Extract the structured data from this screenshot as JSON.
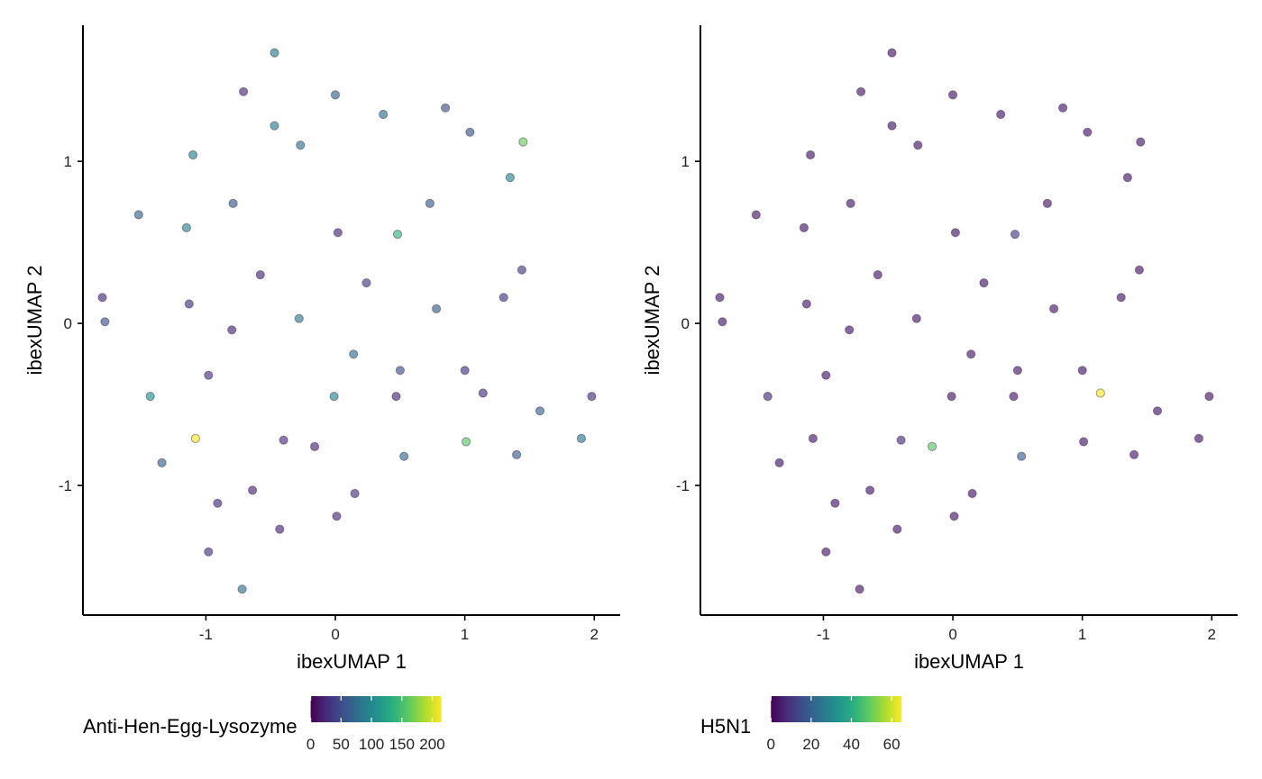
{
  "chart_data": [
    {
      "type": "scatter",
      "xlabel": "ibexUMAP 1",
      "ylabel": "ibexUMAP 2",
      "xlim": [
        -1.95,
        2.2
      ],
      "ylim": [
        -1.8,
        1.84
      ],
      "xticks": [
        -1,
        0,
        1,
        2
      ],
      "yticks": [
        -1,
        0,
        1
      ],
      "grid": false,
      "legend": {
        "title": "Anti-Hen-Egg-Lysozyme",
        "placement": "bottom",
        "colorscale": "viridis",
        "range": [
          0,
          215
        ],
        "ticks": [
          0,
          50,
          100,
          150,
          200
        ],
        "tick_labels": [
          "0",
          "50",
          "100",
          "150",
          "200"
        ]
      },
      "points": [
        {
          "x": -0.47,
          "y": 1.67,
          "v": 90
        },
        {
          "x": -0.71,
          "y": 1.43,
          "v": 25
        },
        {
          "x": 0.0,
          "y": 1.41,
          "v": 70
        },
        {
          "x": 0.37,
          "y": 1.29,
          "v": 80
        },
        {
          "x": 0.85,
          "y": 1.33,
          "v": 55
        },
        {
          "x": -0.47,
          "y": 1.22,
          "v": 95
        },
        {
          "x": -0.27,
          "y": 1.1,
          "v": 80
        },
        {
          "x": 1.04,
          "y": 1.18,
          "v": 60
        },
        {
          "x": 1.45,
          "y": 1.12,
          "v": 165
        },
        {
          "x": -1.1,
          "y": 1.04,
          "v": 95
        },
        {
          "x": 1.35,
          "y": 0.9,
          "v": 100
        },
        {
          "x": -0.79,
          "y": 0.74,
          "v": 60
        },
        {
          "x": 0.73,
          "y": 0.74,
          "v": 65
        },
        {
          "x": -1.52,
          "y": 0.67,
          "v": 70
        },
        {
          "x": -1.15,
          "y": 0.59,
          "v": 100
        },
        {
          "x": 0.02,
          "y": 0.56,
          "v": 25
        },
        {
          "x": 0.48,
          "y": 0.55,
          "v": 140
        },
        {
          "x": -0.58,
          "y": 0.3,
          "v": 25
        },
        {
          "x": 1.44,
          "y": 0.33,
          "v": 40
        },
        {
          "x": 0.24,
          "y": 0.25,
          "v": 40
        },
        {
          "x": -1.8,
          "y": 0.16,
          "v": 25
        },
        {
          "x": 1.3,
          "y": 0.16,
          "v": 30
        },
        {
          "x": -1.13,
          "y": 0.12,
          "v": 30
        },
        {
          "x": 0.78,
          "y": 0.09,
          "v": 65
        },
        {
          "x": -0.28,
          "y": 0.03,
          "v": 90
        },
        {
          "x": -1.78,
          "y": 0.01,
          "v": 55
        },
        {
          "x": -0.8,
          "y": -0.04,
          "v": 25
        },
        {
          "x": 0.14,
          "y": -0.19,
          "v": 80
        },
        {
          "x": 0.5,
          "y": -0.29,
          "v": 55
        },
        {
          "x": 1.0,
          "y": -0.29,
          "v": 30
        },
        {
          "x": -0.98,
          "y": -0.32,
          "v": 30
        },
        {
          "x": -1.43,
          "y": -0.45,
          "v": 110
        },
        {
          "x": -0.01,
          "y": -0.45,
          "v": 100
        },
        {
          "x": 0.47,
          "y": -0.45,
          "v": 25
        },
        {
          "x": 1.14,
          "y": -0.43,
          "v": 30
        },
        {
          "x": 1.98,
          "y": -0.45,
          "v": 30
        },
        {
          "x": 1.58,
          "y": -0.54,
          "v": 70
        },
        {
          "x": -1.08,
          "y": -0.71,
          "v": 215
        },
        {
          "x": -0.4,
          "y": -0.72,
          "v": 30
        },
        {
          "x": 1.01,
          "y": -0.73,
          "v": 160
        },
        {
          "x": 1.9,
          "y": -0.71,
          "v": 90
        },
        {
          "x": -0.16,
          "y": -0.76,
          "v": 25
        },
        {
          "x": 1.4,
          "y": -0.81,
          "v": 65
        },
        {
          "x": 0.53,
          "y": -0.82,
          "v": 75
        },
        {
          "x": -1.34,
          "y": -0.86,
          "v": 70
        },
        {
          "x": -0.64,
          "y": -1.03,
          "v": 25
        },
        {
          "x": 0.15,
          "y": -1.05,
          "v": 30
        },
        {
          "x": -0.91,
          "y": -1.11,
          "v": 25
        },
        {
          "x": 0.01,
          "y": -1.19,
          "v": 25
        },
        {
          "x": -0.43,
          "y": -1.27,
          "v": 25
        },
        {
          "x": -0.98,
          "y": -1.41,
          "v": 30
        },
        {
          "x": -0.72,
          "y": -1.64,
          "v": 85
        }
      ]
    },
    {
      "type": "scatter",
      "xlabel": "ibexUMAP 1",
      "ylabel": "ibexUMAP 2",
      "xlim": [
        -1.95,
        2.2
      ],
      "ylim": [
        -1.8,
        1.84
      ],
      "xticks": [
        -1,
        0,
        1,
        2
      ],
      "yticks": [
        -1,
        0,
        1
      ],
      "grid": false,
      "legend": {
        "title": "H5N1",
        "placement": "bottom",
        "colorscale": "viridis",
        "range": [
          0,
          65
        ],
        "ticks": [
          0,
          20,
          40,
          60
        ],
        "tick_labels": [
          "0",
          "20",
          "40",
          "60"
        ]
      },
      "points": [
        {
          "x": -0.47,
          "y": 1.67,
          "v": 4
        },
        {
          "x": -0.71,
          "y": 1.43,
          "v": 4
        },
        {
          "x": 0.0,
          "y": 1.41,
          "v": 4
        },
        {
          "x": 0.37,
          "y": 1.29,
          "v": 4
        },
        {
          "x": 0.85,
          "y": 1.33,
          "v": 4
        },
        {
          "x": -0.47,
          "y": 1.22,
          "v": 4
        },
        {
          "x": -0.27,
          "y": 1.1,
          "v": 4
        },
        {
          "x": 1.04,
          "y": 1.18,
          "v": 4
        },
        {
          "x": 1.45,
          "y": 1.12,
          "v": 4
        },
        {
          "x": -1.1,
          "y": 1.04,
          "v": 4
        },
        {
          "x": 1.35,
          "y": 0.9,
          "v": 4
        },
        {
          "x": -0.79,
          "y": 0.74,
          "v": 4
        },
        {
          "x": 0.73,
          "y": 0.74,
          "v": 4
        },
        {
          "x": -1.52,
          "y": 0.67,
          "v": 4
        },
        {
          "x": -1.15,
          "y": 0.59,
          "v": 4
        },
        {
          "x": 0.02,
          "y": 0.56,
          "v": 4
        },
        {
          "x": 0.48,
          "y": 0.55,
          "v": 12
        },
        {
          "x": -0.58,
          "y": 0.3,
          "v": 4
        },
        {
          "x": 1.44,
          "y": 0.33,
          "v": 4
        },
        {
          "x": 0.24,
          "y": 0.25,
          "v": 4
        },
        {
          "x": -1.8,
          "y": 0.16,
          "v": 4
        },
        {
          "x": 1.3,
          "y": 0.16,
          "v": 4
        },
        {
          "x": -1.13,
          "y": 0.12,
          "v": 4
        },
        {
          "x": 0.78,
          "y": 0.09,
          "v": 4
        },
        {
          "x": -0.28,
          "y": 0.03,
          "v": 4
        },
        {
          "x": -1.78,
          "y": 0.01,
          "v": 4
        },
        {
          "x": -0.8,
          "y": -0.04,
          "v": 4
        },
        {
          "x": 0.14,
          "y": -0.19,
          "v": 4
        },
        {
          "x": 0.5,
          "y": -0.29,
          "v": 4
        },
        {
          "x": 1.0,
          "y": -0.29,
          "v": 4
        },
        {
          "x": -0.98,
          "y": -0.32,
          "v": 4
        },
        {
          "x": -1.43,
          "y": -0.45,
          "v": 8
        },
        {
          "x": -0.01,
          "y": -0.45,
          "v": 4
        },
        {
          "x": 0.47,
          "y": -0.45,
          "v": 4
        },
        {
          "x": 1.14,
          "y": -0.43,
          "v": 65
        },
        {
          "x": 1.98,
          "y": -0.45,
          "v": 4
        },
        {
          "x": 1.58,
          "y": -0.54,
          "v": 4
        },
        {
          "x": -1.08,
          "y": -0.71,
          "v": 4
        },
        {
          "x": -0.4,
          "y": -0.72,
          "v": 8
        },
        {
          "x": 1.01,
          "y": -0.73,
          "v": 4
        },
        {
          "x": 1.9,
          "y": -0.71,
          "v": 4
        },
        {
          "x": -0.16,
          "y": -0.76,
          "v": 48
        },
        {
          "x": 1.4,
          "y": -0.81,
          "v": 4
        },
        {
          "x": 0.53,
          "y": -0.82,
          "v": 20
        },
        {
          "x": -1.34,
          "y": -0.86,
          "v": 4
        },
        {
          "x": -0.64,
          "y": -1.03,
          "v": 4
        },
        {
          "x": 0.15,
          "y": -1.05,
          "v": 4
        },
        {
          "x": -0.91,
          "y": -1.11,
          "v": 4
        },
        {
          "x": 0.01,
          "y": -1.19,
          "v": 4
        },
        {
          "x": -0.43,
          "y": -1.27,
          "v": 4
        },
        {
          "x": -0.98,
          "y": -1.41,
          "v": 4
        },
        {
          "x": -0.72,
          "y": -1.64,
          "v": 4
        }
      ]
    }
  ]
}
